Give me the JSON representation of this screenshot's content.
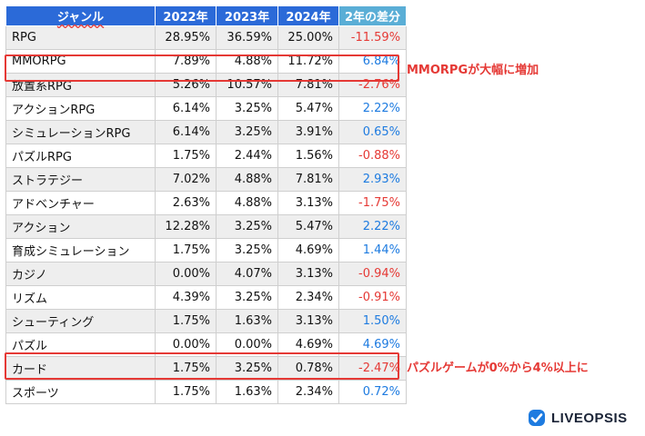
{
  "chart_data": {
    "type": "table",
    "columns": [
      "ジャンル",
      "2022年",
      "2023年",
      "2024年",
      "2年の差分"
    ],
    "rows": [
      [
        "RPG",
        "28.95%",
        "36.59%",
        "25.00%",
        "-11.59%"
      ],
      [
        "MMORPG",
        "7.89%",
        "4.88%",
        "11.72%",
        "6.84%"
      ],
      [
        "放置系RPG",
        "5.26%",
        "10.57%",
        "7.81%",
        "-2.76%"
      ],
      [
        "アクションRPG",
        "6.14%",
        "3.25%",
        "5.47%",
        "2.22%"
      ],
      [
        "シミュレーションRPG",
        "6.14%",
        "3.25%",
        "3.91%",
        "0.65%"
      ],
      [
        "パズルRPG",
        "1.75%",
        "2.44%",
        "1.56%",
        "-0.88%"
      ],
      [
        "ストラテジー",
        "7.02%",
        "4.88%",
        "7.81%",
        "2.93%"
      ],
      [
        "アドベンチャー",
        "2.63%",
        "4.88%",
        "3.13%",
        "-1.75%"
      ],
      [
        "アクション",
        "12.28%",
        "3.25%",
        "5.47%",
        "2.22%"
      ],
      [
        "育成シミュレーション",
        "1.75%",
        "3.25%",
        "4.69%",
        "1.44%"
      ],
      [
        "カジノ",
        "0.00%",
        "4.07%",
        "3.13%",
        "-0.94%"
      ],
      [
        "リズム",
        "4.39%",
        "3.25%",
        "2.34%",
        "-0.91%"
      ],
      [
        "シューティング",
        "1.75%",
        "1.63%",
        "3.13%",
        "1.50%"
      ],
      [
        "パズル",
        "0.00%",
        "0.00%",
        "4.69%",
        "4.69%"
      ],
      [
        "カード",
        "1.75%",
        "3.25%",
        "0.78%",
        "-2.47%"
      ],
      [
        "スポーツ",
        "1.75%",
        "1.63%",
        "2.34%",
        "0.72%"
      ]
    ],
    "highlighted_rows": [
      "MMORPG",
      "パズル"
    ],
    "annotations": [
      {
        "row": "MMORPG",
        "text": "MMORPGが大幅に増加"
      },
      {
        "row": "パズル",
        "text": "パズルゲームが0%から4%以上に"
      }
    ],
    "colors": {
      "header": "#2b6ad8",
      "diff_header": "#5aaed6",
      "negative": "#e53935",
      "positive": "#1e7be0",
      "highlight": "#e53935",
      "row_alt": "#eeeeee"
    }
  },
  "brand": {
    "name": "LIVEOPSIS",
    "icon": "liveopsis-logo-icon"
  }
}
